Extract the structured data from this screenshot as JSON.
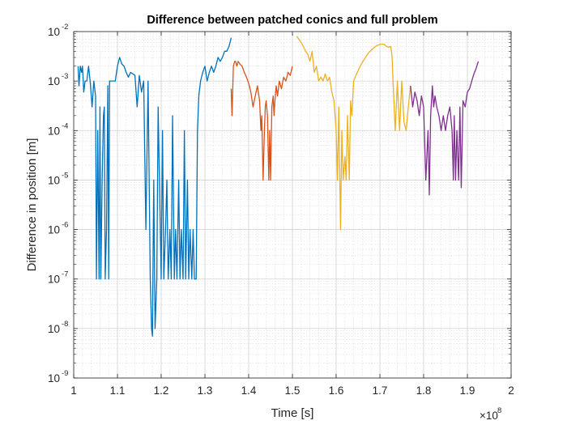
{
  "chart_data": {
    "type": "line",
    "title": "Difference between patched conics and full problem",
    "xlabel": "Time [s]",
    "ylabel": "Difference in position [m]",
    "x_multiplier": {
      "base": "×10",
      "exp": "8"
    },
    "x_range": [
      1.0,
      2.0
    ],
    "y_scale": "log",
    "y_range": [
      1e-09,
      0.01
    ],
    "grid": true,
    "minor_grid": true,
    "x_ticks": [
      "1",
      "1.1",
      "1.2",
      "1.3",
      "1.4",
      "1.5",
      "1.6",
      "1.7",
      "1.8",
      "1.9",
      "2"
    ],
    "x_tick_values": [
      1.0,
      1.1,
      1.2,
      1.3,
      1.4,
      1.5,
      1.6,
      1.7,
      1.8,
      1.9,
      2.0
    ],
    "y_ticks": [
      {
        "base": "10",
        "exp": "-9",
        "value": 1e-09
      },
      {
        "base": "10",
        "exp": "-8",
        "value": 1e-08
      },
      {
        "base": "10",
        "exp": "-7",
        "value": 1e-07
      },
      {
        "base": "10",
        "exp": "-6",
        "value": 1e-06
      },
      {
        "base": "10",
        "exp": "-5",
        "value": 1e-05
      },
      {
        "base": "10",
        "exp": "-4",
        "value": 0.0001
      },
      {
        "base": "10",
        "exp": "-3",
        "value": 0.001
      },
      {
        "base": "10",
        "exp": "-2",
        "value": 0.01
      }
    ],
    "series": [
      {
        "color": "#0072BD",
        "x": [
          1.01,
          1.012,
          1.015,
          1.018,
          1.02,
          1.023,
          1.026,
          1.03,
          1.034,
          1.038,
          1.042,
          1.046,
          1.05,
          1.052,
          1.055,
          1.058,
          1.06,
          1.062,
          1.065,
          1.068,
          1.07,
          1.072,
          1.075,
          1.078,
          1.08,
          1.082,
          1.085,
          1.09,
          1.095,
          1.1,
          1.105,
          1.108,
          1.11,
          1.115,
          1.12,
          1.125,
          1.13,
          1.135,
          1.14,
          1.145,
          1.15,
          1.155,
          1.16,
          1.165,
          1.17,
          1.175,
          1.178,
          1.18,
          1.183,
          1.186,
          1.19,
          1.193,
          1.196,
          1.2,
          1.203,
          1.206,
          1.21,
          1.213,
          1.216,
          1.22,
          1.223,
          1.226,
          1.23,
          1.233,
          1.236,
          1.24,
          1.243,
          1.246,
          1.25,
          1.253,
          1.256,
          1.26,
          1.263,
          1.266,
          1.27,
          1.273,
          1.276,
          1.28,
          1.283,
          1.286,
          1.29,
          1.295,
          1.3,
          1.305,
          1.31,
          1.315,
          1.32,
          1.325,
          1.33,
          1.335,
          1.34,
          1.345,
          1.35,
          1.355,
          1.36
        ],
        "y": [
          0.002,
          0.0008,
          0.002,
          0.0015,
          0.002,
          0.0006,
          0.001,
          0.001,
          0.002,
          0.0009,
          0.0003,
          0.001,
          0.0005,
          1e-07,
          0.0001,
          1e-07,
          0.0003,
          1e-07,
          1e-05,
          0.0002,
          0.0003,
          1e-07,
          1e-06,
          0.0008,
          1e-07,
          0.001,
          0.001,
          0.001,
          0.001,
          0.002,
          0.003,
          0.0025,
          0.0022,
          0.002,
          0.0015,
          0.0012,
          0.0015,
          0.0014,
          0.0013,
          0.0003,
          0.0013,
          0.0006,
          0.001,
          1e-06,
          0.001,
          1e-07,
          1e-08,
          7e-09,
          1e-05,
          1e-08,
          1e-07,
          0.0003,
          1e-05,
          1e-07,
          0.0001,
          1e-07,
          1e-06,
          1e-05,
          1e-07,
          1e-06,
          1e-07,
          0.0002,
          1e-07,
          1e-06,
          1e-07,
          1e-05,
          1e-07,
          1e-06,
          1e-07,
          0.0001,
          1e-07,
          1e-05,
          1e-07,
          1e-06,
          1e-07,
          1e-06,
          1e-07,
          1e-07,
          0.0001,
          0.0005,
          0.001,
          0.0015,
          0.002,
          0.001,
          0.0015,
          0.002,
          0.0015,
          0.002,
          0.003,
          0.0025,
          0.003,
          0.004,
          0.004,
          0.005,
          0.0075
        ]
      },
      {
        "color": "#D95319",
        "x": [
          1.36,
          1.362,
          1.365,
          1.368,
          1.37,
          1.373,
          1.376,
          1.38,
          1.385,
          1.39,
          1.395,
          1.4,
          1.405,
          1.41,
          1.415,
          1.42,
          1.425,
          1.428,
          1.43,
          1.433,
          1.436,
          1.438,
          1.44,
          1.443,
          1.446,
          1.448,
          1.45,
          1.453,
          1.456,
          1.458,
          1.46,
          1.463,
          1.466,
          1.47,
          1.475,
          1.48,
          1.485,
          1.49,
          1.495,
          1.5
        ],
        "y": [
          0.0007,
          0.0002,
          0.002,
          0.0025,
          0.0025,
          0.002,
          0.0025,
          0.0022,
          0.002,
          0.0015,
          0.0012,
          0.0009,
          0.0006,
          0.0003,
          0.0005,
          0.0008,
          0.0004,
          0.0001,
          0.0002,
          1e-05,
          0.0001,
          0.0003,
          0.0004,
          0.0002,
          1e-05,
          0.0001,
          1e-05,
          0.0003,
          0.0005,
          0.0002,
          0.0004,
          0.0008,
          0.0005,
          0.001,
          0.0007,
          0.0012,
          0.001,
          0.0015,
          0.0013,
          0.002
        ]
      },
      {
        "color": "#EDB120",
        "x": [
          1.51,
          1.515,
          1.52,
          1.525,
          1.53,
          1.535,
          1.54,
          1.545,
          1.55,
          1.555,
          1.56,
          1.565,
          1.57,
          1.575,
          1.58,
          1.585,
          1.59,
          1.595,
          1.6,
          1.603,
          1.606,
          1.61,
          1.613,
          1.616,
          1.62,
          1.623,
          1.626,
          1.63,
          1.633,
          1.636,
          1.64,
          1.645,
          1.65,
          1.655,
          1.66,
          1.665,
          1.67,
          1.675,
          1.68,
          1.685,
          1.69,
          1.695,
          1.7,
          1.705,
          1.71,
          1.715,
          1.72,
          1.725,
          1.728,
          1.73,
          1.735,
          1.74,
          1.745,
          1.75,
          1.755,
          1.76,
          1.765,
          1.77
        ],
        "y": [
          0.008,
          0.007,
          0.006,
          0.005,
          0.004,
          0.0035,
          0.0025,
          0.004,
          0.0015,
          0.002,
          0.001,
          0.0012,
          0.001,
          0.0014,
          0.001,
          0.0012,
          0.0006,
          0.0004,
          0.0001,
          1e-05,
          0.0003,
          1e-06,
          0.0001,
          1e-05,
          3e-05,
          1e-05,
          0.0002,
          1e-05,
          0.0004,
          0.0002,
          0.001,
          0.0013,
          0.0016,
          0.002,
          0.0024,
          0.0028,
          0.0033,
          0.0038,
          0.0042,
          0.0046,
          0.005,
          0.0053,
          0.0055,
          0.0056,
          0.0055,
          0.005,
          0.0048,
          0.005,
          0.003,
          0.001,
          0.0001,
          0.001,
          0.0001,
          0.001,
          0.00015,
          0.0001,
          0.0003,
          0.0008
        ]
      },
      {
        "color": "#7E2F8E",
        "x": [
          1.77,
          1.775,
          1.78,
          1.785,
          1.79,
          1.795,
          1.8,
          1.805,
          1.81,
          1.813,
          1.816,
          1.82,
          1.823,
          1.826,
          1.83,
          1.835,
          1.84,
          1.845,
          1.85,
          1.855,
          1.86,
          1.865,
          1.868,
          1.87,
          1.873,
          1.876,
          1.88,
          1.883,
          1.886,
          1.89,
          1.895,
          1.9,
          1.905,
          1.91,
          1.915,
          1.92,
          1.925
        ],
        "y": [
          0.0008,
          0.0003,
          0.0006,
          0.0004,
          0.0002,
          0.0005,
          0.0003,
          1e-05,
          0.0001,
          5e-06,
          0.0002,
          0.0008,
          0.0003,
          0.0005,
          0.0003,
          0.0002,
          0.0001,
          0.0002,
          0.0001,
          0.0002,
          0.0003,
          0.0001,
          1e-05,
          0.0002,
          1e-05,
          0.0001,
          1e-05,
          0.0003,
          7e-06,
          0.0004,
          0.0003,
          0.0006,
          0.0007,
          0.001,
          0.0014,
          0.0018,
          0.0025
        ]
      }
    ]
  }
}
